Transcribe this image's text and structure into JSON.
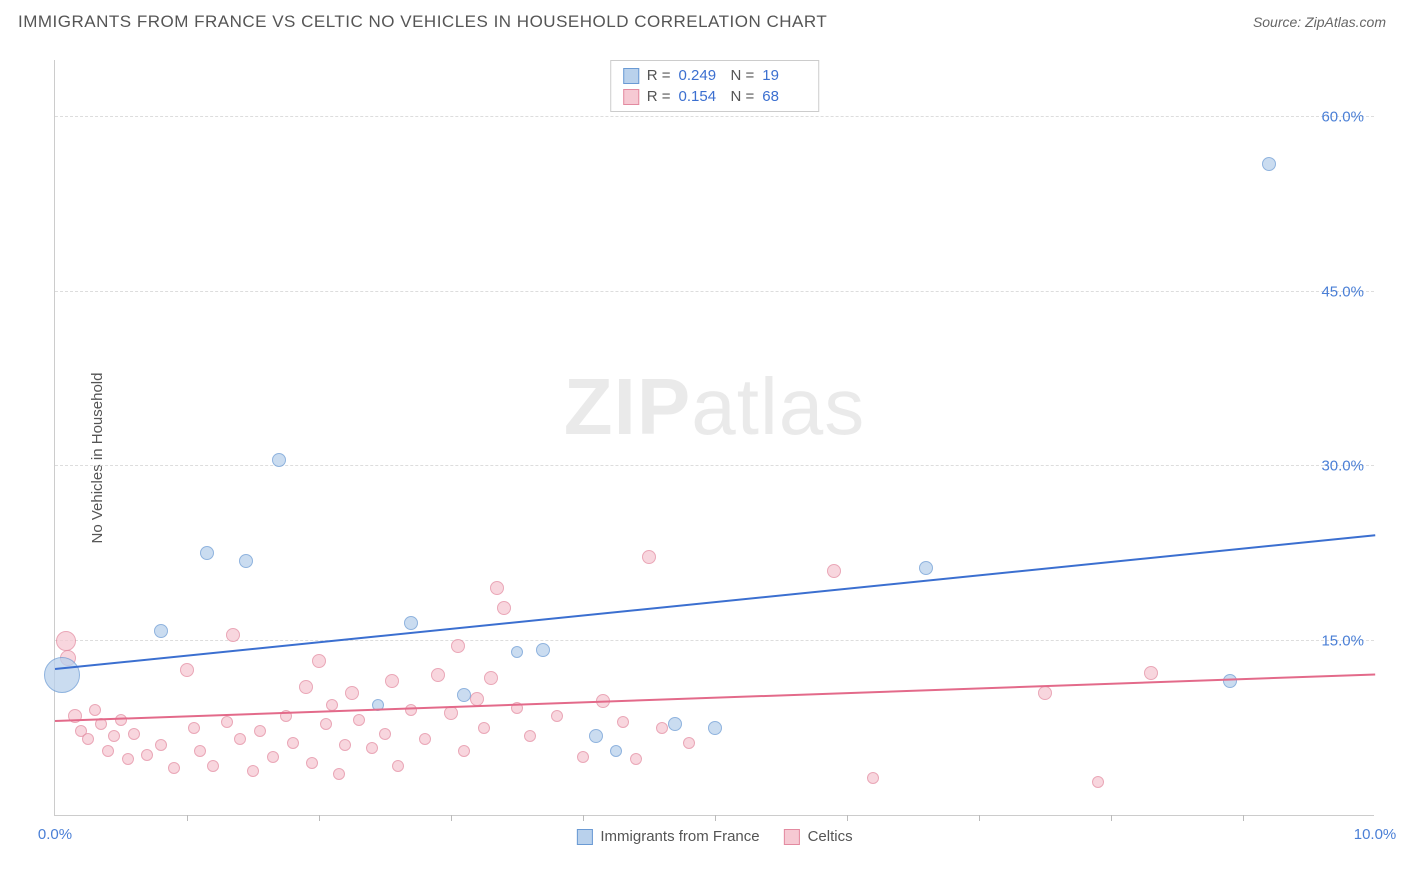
{
  "title": "IMMIGRANTS FROM FRANCE VS CELTIC NO VEHICLES IN HOUSEHOLD CORRELATION CHART",
  "source_label": "Source:",
  "source_name": "ZipAtlas.com",
  "ylabel": "No Vehicles in Household",
  "watermark_a": "ZIP",
  "watermark_b": "atlas",
  "chart": {
    "type": "scatter",
    "xlim": [
      0,
      10
    ],
    "ylim": [
      0,
      65
    ],
    "x_ticks_minor_step": 1.0,
    "x_left_label": "0.0%",
    "x_right_label": "10.0%",
    "y_ticks": [
      15,
      30,
      45,
      60
    ],
    "y_tick_labels": [
      "15.0%",
      "30.0%",
      "45.0%",
      "60.0%"
    ],
    "grid_color": "#dddddd",
    "axis_color": "#cccccc",
    "tick_label_color": "#4a7fd6",
    "background_color": "#ffffff",
    "series": [
      {
        "id": "france",
        "name": "Immigrants from France",
        "fill": "#b9d1ec",
        "stroke": "#6a9ad4",
        "line_color": "#3b6fd0",
        "R": "0.249",
        "N": "19",
        "trend": {
          "x1": 0,
          "y1": 12.5,
          "x2": 10,
          "y2": 24.0
        },
        "points": [
          {
            "x": 0.05,
            "y": 12.0,
            "r": 18
          },
          {
            "x": 0.8,
            "y": 15.8,
            "r": 7
          },
          {
            "x": 1.15,
            "y": 22.5,
            "r": 7
          },
          {
            "x": 1.45,
            "y": 21.8,
            "r": 7
          },
          {
            "x": 1.7,
            "y": 30.5,
            "r": 7
          },
          {
            "x": 2.7,
            "y": 16.5,
            "r": 7
          },
          {
            "x": 2.45,
            "y": 9.5,
            "r": 6
          },
          {
            "x": 3.1,
            "y": 10.3,
            "r": 7
          },
          {
            "x": 3.5,
            "y": 14.0,
            "r": 6
          },
          {
            "x": 3.7,
            "y": 14.2,
            "r": 7
          },
          {
            "x": 4.1,
            "y": 6.8,
            "r": 7
          },
          {
            "x": 4.25,
            "y": 5.5,
            "r": 6
          },
          {
            "x": 4.7,
            "y": 7.8,
            "r": 7
          },
          {
            "x": 5.0,
            "y": 7.5,
            "r": 7
          },
          {
            "x": 6.6,
            "y": 21.2,
            "r": 7
          },
          {
            "x": 8.9,
            "y": 11.5,
            "r": 7
          },
          {
            "x": 9.2,
            "y": 56.0,
            "r": 7
          }
        ]
      },
      {
        "id": "celtics",
        "name": "Celtics",
        "fill": "#f6c9d3",
        "stroke": "#e38aa0",
        "line_color": "#e36a8a",
        "R": "0.154",
        "N": "68",
        "trend": {
          "x1": 0,
          "y1": 8.0,
          "x2": 10,
          "y2": 12.0
        },
        "points": [
          {
            "x": 0.08,
            "y": 15.0,
            "r": 10
          },
          {
            "x": 0.1,
            "y": 13.5,
            "r": 8
          },
          {
            "x": 0.15,
            "y": 8.5,
            "r": 7
          },
          {
            "x": 0.2,
            "y": 7.2,
            "r": 6
          },
          {
            "x": 0.25,
            "y": 6.5,
            "r": 6
          },
          {
            "x": 0.3,
            "y": 9.0,
            "r": 6
          },
          {
            "x": 0.35,
            "y": 7.8,
            "r": 6
          },
          {
            "x": 0.4,
            "y": 5.5,
            "r": 6
          },
          {
            "x": 0.45,
            "y": 6.8,
            "r": 6
          },
          {
            "x": 0.5,
            "y": 8.2,
            "r": 6
          },
          {
            "x": 0.55,
            "y": 4.8,
            "r": 6
          },
          {
            "x": 0.6,
            "y": 7.0,
            "r": 6
          },
          {
            "x": 0.7,
            "y": 5.2,
            "r": 6
          },
          {
            "x": 0.8,
            "y": 6.0,
            "r": 6
          },
          {
            "x": 0.9,
            "y": 4.0,
            "r": 6
          },
          {
            "x": 1.0,
            "y": 12.5,
            "r": 7
          },
          {
            "x": 1.05,
            "y": 7.5,
            "r": 6
          },
          {
            "x": 1.1,
            "y": 5.5,
            "r": 6
          },
          {
            "x": 1.2,
            "y": 4.2,
            "r": 6
          },
          {
            "x": 1.3,
            "y": 8.0,
            "r": 6
          },
          {
            "x": 1.35,
            "y": 15.5,
            "r": 7
          },
          {
            "x": 1.4,
            "y": 6.5,
            "r": 6
          },
          {
            "x": 1.5,
            "y": 3.8,
            "r": 6
          },
          {
            "x": 1.55,
            "y": 7.2,
            "r": 6
          },
          {
            "x": 1.65,
            "y": 5.0,
            "r": 6
          },
          {
            "x": 1.75,
            "y": 8.5,
            "r": 6
          },
          {
            "x": 1.8,
            "y": 6.2,
            "r": 6
          },
          {
            "x": 1.9,
            "y": 11.0,
            "r": 7
          },
          {
            "x": 1.95,
            "y": 4.5,
            "r": 6
          },
          {
            "x": 2.0,
            "y": 13.2,
            "r": 7
          },
          {
            "x": 2.05,
            "y": 7.8,
            "r": 6
          },
          {
            "x": 2.1,
            "y": 9.5,
            "r": 6
          },
          {
            "x": 2.15,
            "y": 3.5,
            "r": 6
          },
          {
            "x": 2.2,
            "y": 6.0,
            "r": 6
          },
          {
            "x": 2.25,
            "y": 10.5,
            "r": 7
          },
          {
            "x": 2.3,
            "y": 8.2,
            "r": 6
          },
          {
            "x": 2.4,
            "y": 5.8,
            "r": 6
          },
          {
            "x": 2.5,
            "y": 7.0,
            "r": 6
          },
          {
            "x": 2.55,
            "y": 11.5,
            "r": 7
          },
          {
            "x": 2.6,
            "y": 4.2,
            "r": 6
          },
          {
            "x": 2.7,
            "y": 9.0,
            "r": 6
          },
          {
            "x": 2.8,
            "y": 6.5,
            "r": 6
          },
          {
            "x": 2.9,
            "y": 12.0,
            "r": 7
          },
          {
            "x": 3.0,
            "y": 8.8,
            "r": 7
          },
          {
            "x": 3.05,
            "y": 14.5,
            "r": 7
          },
          {
            "x": 3.1,
            "y": 5.5,
            "r": 6
          },
          {
            "x": 3.2,
            "y": 10.0,
            "r": 7
          },
          {
            "x": 3.25,
            "y": 7.5,
            "r": 6
          },
          {
            "x": 3.3,
            "y": 11.8,
            "r": 7
          },
          {
            "x": 3.35,
            "y": 19.5,
            "r": 7
          },
          {
            "x": 3.4,
            "y": 17.8,
            "r": 7
          },
          {
            "x": 3.5,
            "y": 9.2,
            "r": 6
          },
          {
            "x": 3.6,
            "y": 6.8,
            "r": 6
          },
          {
            "x": 3.8,
            "y": 8.5,
            "r": 6
          },
          {
            "x": 4.0,
            "y": 5.0,
            "r": 6
          },
          {
            "x": 4.15,
            "y": 9.8,
            "r": 7
          },
          {
            "x": 4.3,
            "y": 8.0,
            "r": 6
          },
          {
            "x": 4.4,
            "y": 4.8,
            "r": 6
          },
          {
            "x": 4.5,
            "y": 22.2,
            "r": 7
          },
          {
            "x": 4.6,
            "y": 7.5,
            "r": 6
          },
          {
            "x": 4.8,
            "y": 6.2,
            "r": 6
          },
          {
            "x": 5.9,
            "y": 21.0,
            "r": 7
          },
          {
            "x": 6.2,
            "y": 3.2,
            "r": 6
          },
          {
            "x": 7.5,
            "y": 10.5,
            "r": 7
          },
          {
            "x": 7.9,
            "y": 2.8,
            "r": 6
          },
          {
            "x": 8.3,
            "y": 12.2,
            "r": 7
          }
        ]
      }
    ],
    "legend_top": {
      "r_label": "R =",
      "n_label": "N ="
    },
    "legend_bottom": [
      {
        "series": "france"
      },
      {
        "series": "celtics"
      }
    ]
  }
}
